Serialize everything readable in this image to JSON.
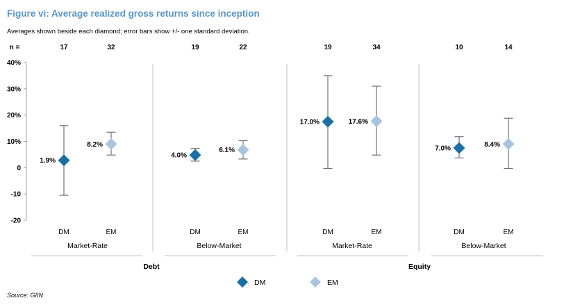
{
  "chart_data": {
    "type": "scatter",
    "title": "Figure vi: Average realized gross returns since inception",
    "subtitle": "Averages shown beside each diamond; error bars show +/- one standard deviation.",
    "n_prefix": "n =",
    "y_tick_labels": [
      "40%",
      "30%",
      "20%",
      "10%",
      "0",
      "-10",
      "-20"
    ],
    "y_tick_values": [
      40,
      30,
      20,
      10,
      0,
      -10,
      -20
    ],
    "ylim": [
      -20,
      40
    ],
    "panels": [
      {
        "section": "Debt",
        "group": "Market-Rate",
        "points": [
          {
            "category": "DM",
            "series": "DM",
            "n": "17",
            "mean": 1.9,
            "low": -10.5,
            "high": 16.0,
            "label": "1.9%",
            "marker_y": 2.8
          },
          {
            "category": "EM",
            "series": "EM",
            "n": "32",
            "mean": 8.2,
            "low": 4.8,
            "high": 13.5,
            "label": "8.2%",
            "marker_y": 9.0
          }
        ]
      },
      {
        "section": "Debt",
        "group": "Below-Market",
        "points": [
          {
            "category": "DM",
            "series": "DM",
            "n": "19",
            "mean": 4.0,
            "low": 2.5,
            "high": 7.3,
            "label": "4.0%",
            "marker_y": 4.8
          },
          {
            "category": "EM",
            "series": "EM",
            "n": "22",
            "mean": 6.1,
            "low": 3.3,
            "high": 10.3,
            "label": "6.1%",
            "marker_y": 6.8
          }
        ]
      },
      {
        "section": "Equity",
        "group": "Market-Rate",
        "points": [
          {
            "category": "DM",
            "series": "DM",
            "n": "19",
            "mean": 17.0,
            "low": -0.3,
            "high": 35.0,
            "label": "17.0%",
            "marker_y": 17.5
          },
          {
            "category": "EM",
            "series": "EM",
            "n": "34",
            "mean": 17.6,
            "low": 4.8,
            "high": 31.0,
            "label": "17.6%",
            "marker_y": 17.7
          }
        ]
      },
      {
        "section": "Equity",
        "group": "Below-Market",
        "points": [
          {
            "category": "DM",
            "series": "DM",
            "n": "10",
            "mean": 7.0,
            "low": 3.7,
            "high": 11.8,
            "label": "7.0%",
            "marker_y": 7.5
          },
          {
            "category": "EM",
            "series": "EM",
            "n": "14",
            "mean": 8.4,
            "low": -0.3,
            "high": 18.8,
            "label": "8.4%",
            "marker_y": 9.0
          }
        ]
      }
    ],
    "sections": [
      "Debt",
      "Equity"
    ],
    "legend": [
      {
        "name": "DM",
        "color": "#1a6fa3"
      },
      {
        "name": "EM",
        "color": "#a8c4df"
      }
    ],
    "colors": {
      "dm": "#1a6fa3",
      "em": "#a8c4df",
      "error_bar": "#6e7378",
      "title": "#5a96c8",
      "divider": "#bfc3c6",
      "axis": "#9aa0a4"
    },
    "source": "Source: GIIN"
  }
}
